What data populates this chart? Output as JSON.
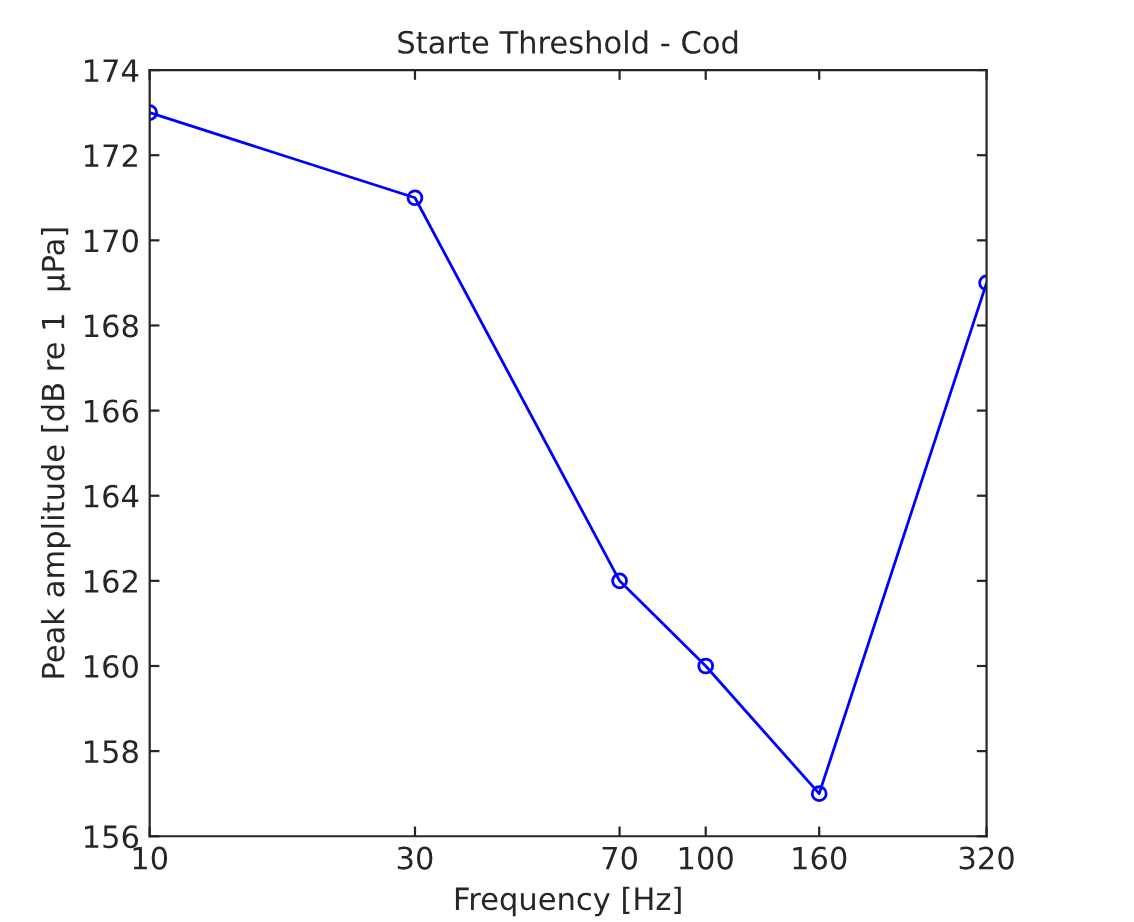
{
  "chart_data": {
    "type": "line",
    "title": "Starte Threshold - Cod",
    "xlabel": "Frequency [Hz]",
    "ylabel": "Peak amplitude [dB re 1  μPa]",
    "x": [
      10,
      30,
      70,
      100,
      160,
      320
    ],
    "series": [
      {
        "color": "#0000ff",
        "values": [
          173,
          171,
          162,
          160,
          157,
          169
        ]
      }
    ],
    "log": "x",
    "xlim": [
      10,
      320
    ],
    "xticks": [
      10,
      30,
      70,
      100,
      160,
      320
    ],
    "ylim": [
      156,
      174
    ],
    "yticks": [
      156,
      158,
      160,
      162,
      164,
      166,
      168,
      170,
      172,
      174
    ],
    "marker": "circle",
    "line_style": "solid",
    "grid": false
  }
}
